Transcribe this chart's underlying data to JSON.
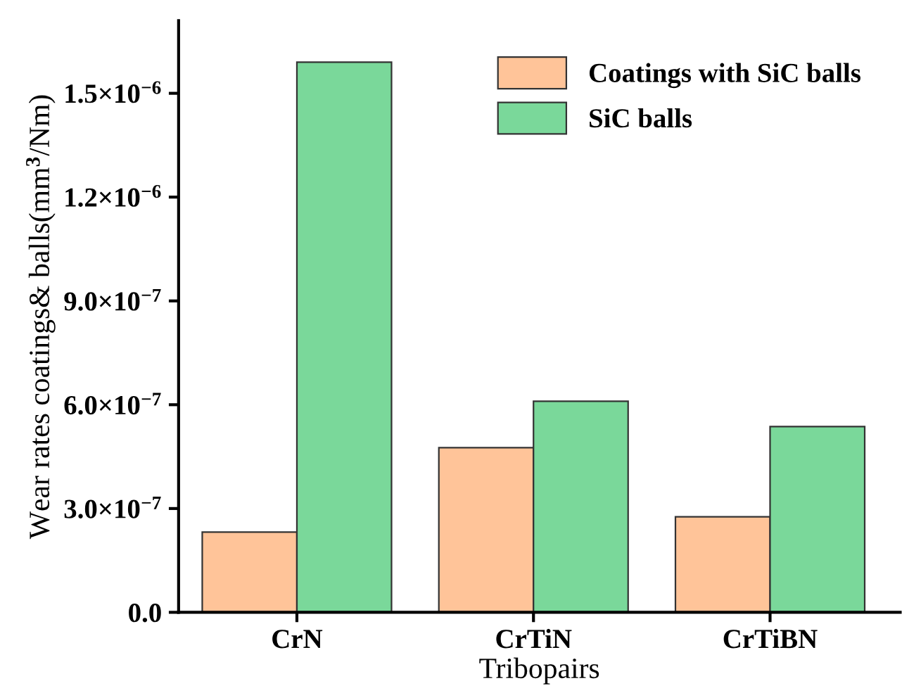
{
  "chart_data": {
    "type": "bar",
    "xlabel": "Tribopairs",
    "ylabel": "Wear rates coatings& balls(mm$^{3}$/Nm)",
    "categories": [
      "CrN",
      "CrTiN",
      "CrTiBN"
    ],
    "series": [
      {
        "name": "Coatings with SiC balls",
        "color": "#ffc499",
        "values": [
          2.32e-07,
          4.76e-07,
          2.76e-07
        ]
      },
      {
        "name": "SiC balls",
        "color": "#7ad89a",
        "values": [
          1.59e-06,
          6.1e-07,
          5.37e-07
        ]
      }
    ],
    "ylim": [
      0,
      1.71e-06
    ],
    "yticks": [
      {
        "value": 0,
        "label": "0.0"
      },
      {
        "value": 3e-07,
        "label": "3.0×10$^{−7}$"
      },
      {
        "value": 6e-07,
        "label": "6.0×10$^{−7}$"
      },
      {
        "value": 9e-07,
        "label": "9.0×10$^{−7}$"
      },
      {
        "value": 1.2e-06,
        "label": "1.2×10$^{−6}$"
      },
      {
        "value": 1.5e-06,
        "label": "1.5×10$^{−6}$"
      }
    ],
    "legend": "top right",
    "grid": false
  }
}
